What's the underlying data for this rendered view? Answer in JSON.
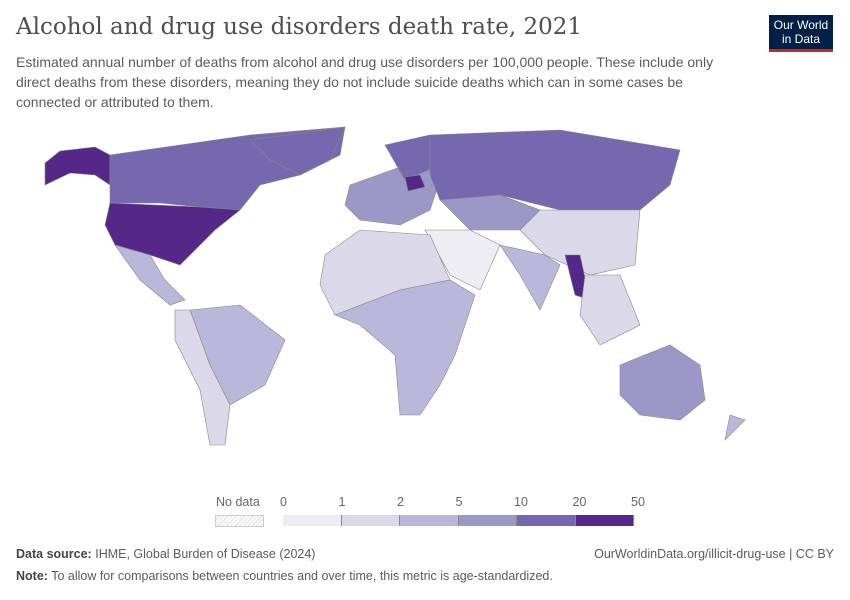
{
  "header": {
    "title": "Alcohol and drug use disorders death rate, 2021",
    "subtitle": "Estimated annual number of deaths from alcohol and drug use disorders per 100,000 people. These include only direct deaths from these disorders, meaning they do not include suicide deaths which can in some cases be connected or attributed to them.",
    "logo_line1": "Our World",
    "logo_line2": "in Data"
  },
  "legend": {
    "no_data_label": "No data",
    "ticks": [
      "0",
      "1",
      "2",
      "5",
      "10",
      "20",
      "50"
    ],
    "colors": [
      "#eeedf4",
      "#dad8e9",
      "#b9b7da",
      "#9b97c7",
      "#7568ae",
      "#542788"
    ]
  },
  "map_colors": {
    "no_data": "#ffffff",
    "border": "#999999",
    "ocean": "#ffffff"
  },
  "footer": {
    "source_label": "Data source:",
    "source": "IHME, Global Burden of Disease (2024)",
    "url": "OurWorldinData.org/illicit-drug-use | CC BY",
    "note_label": "Note:",
    "note": "To allow for comparisons between countries and over time, this metric is age-standardized."
  }
}
